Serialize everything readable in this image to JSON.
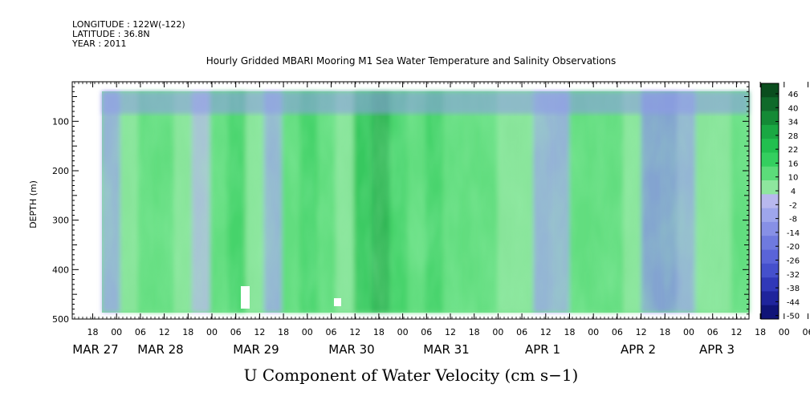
{
  "header": {
    "longitude": "LONGITUDE : 122W(-122)",
    "latitude": "LATITUDE : 36.8N",
    "year": "YEAR : 2011"
  },
  "chart_data": {
    "type": "heatmap",
    "title": "Hourly Gridded MBARI Mooring M1 Sea Water Temperature and Salinity Observations",
    "xlabel": "U Component of Water Velocity (cm s−1)",
    "ylabel": "DEPTH (m)",
    "ylim": [
      500,
      20
    ],
    "y_ticks": [
      "100",
      "200",
      "300",
      "400",
      "500"
    ],
    "x_hour_ticks": [
      "18",
      "00",
      "06",
      "12",
      "18",
      "00",
      "06",
      "12",
      "18",
      "00",
      "06",
      "12",
      "18",
      "00",
      "06",
      "12",
      "18",
      "00",
      "06",
      "12",
      "18",
      "00",
      "06",
      "12",
      "18",
      "00",
      "06",
      "12",
      "18",
      "00",
      "06",
      "12"
    ],
    "x_date_labels": [
      "MAR 27",
      "MAR 28",
      "MAR 29",
      "MAR 30",
      "MAR 31",
      "APR  1",
      "APR  2",
      "APR  3"
    ],
    "colorbar_levels": [
      "46",
      "40",
      "34",
      "28",
      "22",
      "16",
      "10",
      "4",
      "-2",
      "-8",
      "-14",
      "-20",
      "-26",
      "-32",
      "-38",
      "-44",
      "-50"
    ],
    "colorbar_colors": [
      "#0a4d1e",
      "#0f6a2a",
      "#148a36",
      "#1aa843",
      "#22c04f",
      "#34cf5f",
      "#5cdc7a",
      "#8ee69e",
      "#b8b8ee",
      "#9ea6ec",
      "#8790e6",
      "#6f7adf",
      "#5a64d8",
      "#4550cc",
      "#3038b8",
      "#1f249c",
      "#101478"
    ],
    "velocity_columns": [
      -8,
      6,
      10,
      14,
      6,
      -2,
      12,
      16,
      4,
      -6,
      14,
      18,
      12,
      6,
      26,
      32,
      20,
      14,
      16,
      10,
      12,
      14,
      8,
      6,
      -6,
      -4,
      10,
      12,
      14,
      8,
      -10,
      -12,
      -4,
      8,
      6,
      10
    ]
  }
}
